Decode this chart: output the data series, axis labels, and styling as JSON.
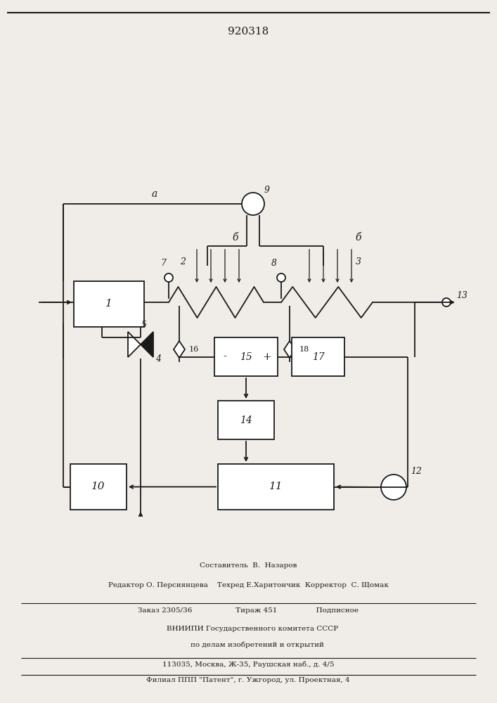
{
  "title": "920318",
  "bg_color": "#f0ede8",
  "line_color": "#1a1a1a",
  "footer": {
    "line1": "Составитель  В.  Назаров",
    "line2": "Редактор О. Персиянцева    Техред Е.Харитончик  Корректор  С. Щомак",
    "line3": "Заказ 2305/36                   Тираж 451                 Подписное",
    "line4": "    ВНИИПИ Государственного комитета СССР",
    "line5": "        по делам изобретений и открытий",
    "line6": "113035, Москва, Ж-35, Раушская наб., д. 4/5",
    "line7": "Филиал ППП \"Патент\", г. Ужгород, ул. Проектная, 4"
  }
}
